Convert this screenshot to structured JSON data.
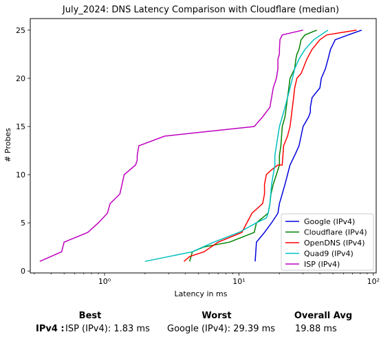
{
  "chart_data": {
    "type": "line",
    "title": "July_2024: DNS Latency Comparison with Cloudflare (median)",
    "xlabel": "Latency in ms",
    "ylabel": "# Probes",
    "xscale": "log",
    "xlim": [
      0.28,
      105
    ],
    "ylim": [
      -0.2,
      26.2
    ],
    "xticks": [
      1,
      10,
      100
    ],
    "xtick_labels": [
      "10⁰",
      "10¹",
      "10²"
    ],
    "yticks": [
      0,
      5,
      10,
      15,
      20,
      25
    ],
    "grid": false,
    "legend": "lower-right",
    "series": [
      {
        "name": "Google (IPv4)",
        "color": "#0000dd",
        "x": [
          13.2,
          13.5,
          15.5,
          17.5,
          19.5,
          20,
          21,
          22,
          23,
          24,
          26,
          28,
          29,
          30,
          33,
          34,
          34,
          35,
          40,
          41,
          44,
          46,
          48,
          52,
          65,
          82
        ],
        "y": [
          1,
          3,
          4,
          5,
          6,
          7,
          8,
          9,
          10,
          11,
          12,
          13,
          14,
          15,
          16,
          16.5,
          17,
          18,
          19,
          20,
          21,
          22,
          23,
          24,
          24.5,
          25
        ]
      },
      {
        "name": "Cloudflare (IPv4)",
        "color": "#008000",
        "x": [
          4.3,
          4.5,
          5.5,
          8.5,
          13,
          13.5,
          16.5,
          17,
          17.3,
          18,
          19,
          20,
          20,
          20.5,
          21,
          22,
          22.5,
          23,
          23.5,
          24,
          26,
          26.5,
          27,
          28,
          29,
          31,
          38
        ],
        "y": [
          1,
          2,
          2.5,
          3,
          4,
          5,
          6,
          7,
          8,
          9,
          10,
          11,
          12,
          13,
          15,
          16,
          17,
          18,
          19,
          20,
          21,
          22,
          22.5,
          23,
          24,
          24.5,
          25
        ]
      },
      {
        "name": "OpenDNS (IPv4)",
        "color": "#ff0000",
        "x": [
          3.9,
          4.3,
          5.5,
          7,
          10.5,
          12.5,
          15,
          15.5,
          15.5,
          16,
          17.5,
          19.5,
          21,
          21.5,
          23,
          24,
          24.5,
          25,
          25.5,
          26,
          27,
          29,
          30,
          32,
          35,
          40,
          45,
          75
        ],
        "y": [
          1,
          1.5,
          2,
          3,
          4,
          6,
          7,
          8,
          9,
          10,
          10.5,
          11,
          11,
          13,
          14,
          15,
          16,
          17,
          18,
          19,
          20,
          20.5,
          21,
          22,
          23,
          24,
          24.5,
          25
        ]
      },
      {
        "name": "Quad9 (IPv4)",
        "color": "#00bfbf",
        "x": [
          2.0,
          3.0,
          4.5,
          6.5,
          10,
          13.5,
          16,
          16.5,
          17,
          17.5,
          18,
          18.5,
          18.5,
          19,
          19.5,
          20,
          21,
          22,
          23,
          24,
          25,
          26,
          28,
          31,
          36,
          46
        ],
        "y": [
          1,
          1.5,
          2,
          3,
          4,
          5,
          5.5,
          6,
          7,
          9,
          10,
          11,
          12,
          13,
          14,
          15,
          16,
          17,
          18,
          19,
          20,
          21,
          22,
          23,
          24,
          25
        ]
      },
      {
        "name": "ISP (IPv4)",
        "color": "#bf00bf",
        "x": [
          0.33,
          0.48,
          0.5,
          0.75,
          0.9,
          1.05,
          1.1,
          1.3,
          1.4,
          1.7,
          1.75,
          1.75,
          1.8,
          2.8,
          13,
          15,
          17,
          17.5,
          18,
          19,
          19.5,
          19.5,
          20,
          20,
          20.2,
          21,
          30
        ],
        "y": [
          1,
          2,
          3,
          4,
          5,
          6,
          7,
          8,
          10,
          11,
          11.5,
          12,
          13,
          14,
          15,
          16,
          17,
          18,
          19,
          20,
          21,
          22,
          22.5,
          23,
          24,
          24.5,
          25
        ]
      }
    ]
  },
  "summary": {
    "headers": {
      "best": "Best",
      "worst": "Worst",
      "overall": "Overall Avg"
    },
    "row_label": "IPv4 :",
    "best_value": "ISP (IPv4): 1.83 ms",
    "worst_value": "Google (IPv4): 29.39 ms",
    "overall_value": "19.88 ms"
  }
}
